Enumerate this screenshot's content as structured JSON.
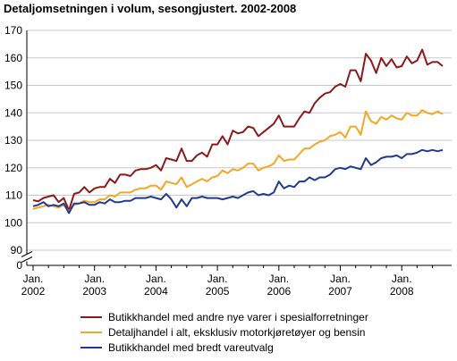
{
  "chart_data": {
    "type": "line",
    "title": "Detaljomsetningen i volum, sesongjustert. 2002-2008",
    "xlabel": "",
    "ylabel": "",
    "ylim": [
      0,
      170
    ],
    "y_break": [
      0,
      90
    ],
    "y_ticks": [
      170,
      160,
      150,
      140,
      130,
      120,
      110,
      100,
      90,
      0
    ],
    "x_range": [
      "2002-01",
      "2008-09"
    ],
    "x_tick_labels": [
      {
        "month": "Jan.",
        "year": "2002"
      },
      {
        "month": "Jan.",
        "year": "2003"
      },
      {
        "month": "Jan.",
        "year": "2004"
      },
      {
        "month": "Jan.",
        "year": "2005"
      },
      {
        "month": "Jan.",
        "year": "2006"
      },
      {
        "month": "Jan.",
        "year": "2007"
      },
      {
        "month": "Jan.",
        "year": "2008"
      }
    ],
    "grid": "horizontal",
    "legend_position": "bottom",
    "series": [
      {
        "name": "Butikkhandel med andre nye varer i spesialforretninger",
        "color": "#8b1a1a",
        "start": "2002-01",
        "values": [
          108.2,
          107.8,
          109,
          109.5,
          110,
          107.5,
          109,
          104.5,
          110.5,
          111,
          113,
          111,
          112.5,
          113,
          113,
          116,
          114.5,
          117.5,
          117.5,
          117,
          119,
          119.5,
          119.5,
          120,
          121,
          119,
          123.5,
          123,
          122.5,
          127,
          122.5,
          122.5,
          124.5,
          125.5,
          124,
          128.5,
          128.5,
          131.5,
          128.5,
          133.5,
          132.5,
          133,
          135,
          134.5,
          131.5,
          133,
          134.5,
          136,
          139,
          135,
          135,
          135,
          138,
          140.5,
          140,
          143.5,
          145.5,
          147,
          147.5,
          149.5,
          150.5,
          149.5,
          155.5,
          155.5,
          151.5,
          161.5,
          159,
          154.5,
          160,
          157,
          159.5,
          156.5,
          157,
          160.5,
          158,
          159,
          163,
          157.5,
          158.5,
          158.5,
          157
        ]
      },
      {
        "name": "Detaljhandel i alt, eksklusiv motorkjøretøyer og bensin",
        "color": "#f5a623",
        "start": "2002-01",
        "values": [
          105,
          105.5,
          106,
          106.5,
          106,
          105.5,
          106.5,
          104,
          106.5,
          107,
          108,
          107.5,
          107.5,
          108.5,
          108.5,
          110,
          109.5,
          111,
          111,
          111,
          112,
          112.5,
          112.5,
          113.5,
          113.5,
          112,
          115,
          114.5,
          114,
          116.5,
          113,
          114,
          115,
          116,
          115,
          116.5,
          117,
          119,
          118,
          119.5,
          119,
          120,
          121.5,
          121.5,
          119,
          120,
          120.5,
          121.5,
          124.5,
          122.5,
          123,
          123,
          125,
          127,
          127,
          128.5,
          129.5,
          130,
          131.5,
          132,
          133,
          131,
          135,
          135,
          132,
          140.5,
          137,
          136,
          138.5,
          137.5,
          139,
          138,
          137.5,
          140,
          139,
          139,
          141,
          140,
          139.5,
          140.5,
          139.5
        ]
      },
      {
        "name": "Butikkhandel med bredt vareutvalg",
        "color": "#1f3a93",
        "start": "2002-01",
        "values": [
          106,
          106.5,
          107.5,
          106,
          106.5,
          106,
          107,
          103.5,
          107,
          107,
          107.5,
          106.5,
          106.5,
          107.5,
          107,
          108.5,
          107.5,
          107.5,
          108,
          108,
          109,
          109,
          109,
          109.5,
          109,
          108.5,
          110.5,
          108.5,
          105.5,
          108.5,
          106,
          109,
          109,
          109.5,
          109,
          109,
          109,
          108.5,
          109,
          109.5,
          109,
          110,
          111,
          111.5,
          110,
          110.5,
          110,
          111,
          115,
          112.5,
          113.5,
          113,
          115,
          115,
          116.5,
          115.5,
          116.5,
          116.5,
          117.5,
          119.5,
          120,
          119.5,
          120.5,
          120,
          119.5,
          123.5,
          121,
          122,
          123.5,
          124,
          124,
          124.5,
          123.5,
          125,
          125,
          125.5,
          126.5,
          126,
          126.5,
          126,
          126.5
        ]
      }
    ]
  }
}
